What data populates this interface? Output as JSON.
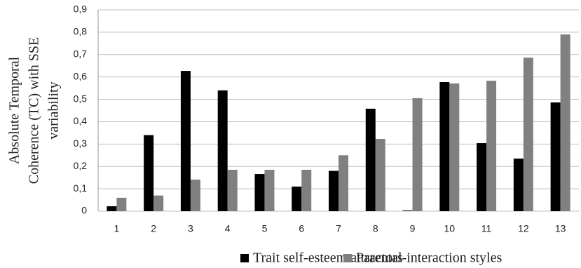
{
  "chart_data": {
    "type": "bar",
    "ylabel": [
      "Absolute Temporal",
      "Coherence (TC) with SSE",
      "variability"
    ],
    "categories": [
      "1",
      "2",
      "3",
      "4",
      "5",
      "6",
      "7",
      "8",
      "9",
      "10",
      "11",
      "12",
      "13"
    ],
    "series": [
      {
        "name": "Trait self-esteem attractors",
        "color": "#000000",
        "values": [
          0.022,
          0.34,
          0.627,
          0.54,
          0.166,
          0.11,
          0.18,
          0.458,
          0.003,
          0.577,
          0.304,
          0.235,
          0.486
        ]
      },
      {
        "name": "Parental-interaction styles",
        "color": "#808080",
        "values": [
          0.06,
          0.07,
          0.141,
          0.185,
          0.185,
          0.185,
          0.25,
          0.323,
          0.505,
          0.571,
          0.583,
          0.686,
          0.79
        ]
      }
    ],
    "ylim": [
      0,
      0.9
    ],
    "yticks": [
      0,
      {
        "value": 0.1,
        "label": "0,1"
      },
      {
        "value": 0.2,
        "label": "0,2"
      },
      {
        "value": 0.3,
        "label": "0,3"
      },
      {
        "value": 0.4,
        "label": "0,4"
      },
      {
        "value": 0.5,
        "label": "0,5"
      },
      {
        "value": 0.6,
        "label": "0,6"
      },
      {
        "value": 0.7,
        "label": "0,7"
      },
      {
        "value": 0.8,
        "label": "0,8"
      },
      {
        "value": 0.9,
        "label": "0,9"
      }
    ],
    "grid": true,
    "legend": "bottom"
  }
}
